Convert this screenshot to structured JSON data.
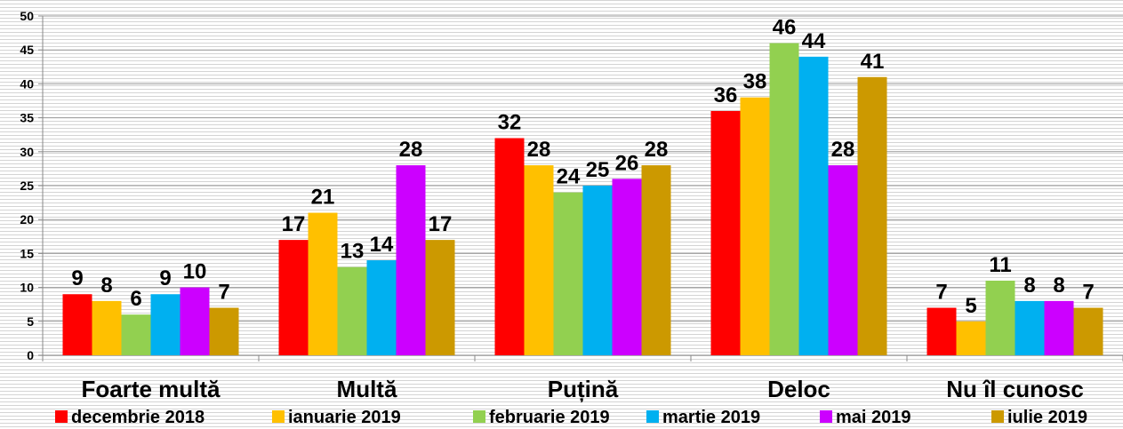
{
  "chart_data": {
    "type": "bar",
    "categories": [
      "Foarte multă",
      "Multă",
      "Puțină",
      "Deloc",
      "Nu îl cunosc"
    ],
    "series": [
      {
        "name": "decembrie 2018",
        "color": "#ff0000",
        "values": [
          9,
          17,
          32,
          36,
          7
        ]
      },
      {
        "name": "ianuarie 2019",
        "color": "#ffc000",
        "values": [
          8,
          21,
          28,
          38,
          5
        ]
      },
      {
        "name": "februarie 2019",
        "color": "#92d050",
        "values": [
          6,
          13,
          24,
          46,
          11
        ]
      },
      {
        "name": "martie 2019",
        "color": "#00b0f0",
        "values": [
          9,
          14,
          25,
          44,
          8
        ]
      },
      {
        "name": "mai 2019",
        "color": "#cc00ff",
        "values": [
          10,
          28,
          26,
          28,
          8
        ]
      },
      {
        "name": "iulie 2019",
        "color": "#cc9900",
        "values": [
          7,
          17,
          28,
          41,
          7
        ]
      }
    ],
    "ylim": [
      0,
      50
    ],
    "yticks": [
      0,
      5,
      10,
      15,
      20,
      25,
      30,
      35,
      40,
      45,
      50
    ],
    "grid": true,
    "legend": "bottom"
  }
}
